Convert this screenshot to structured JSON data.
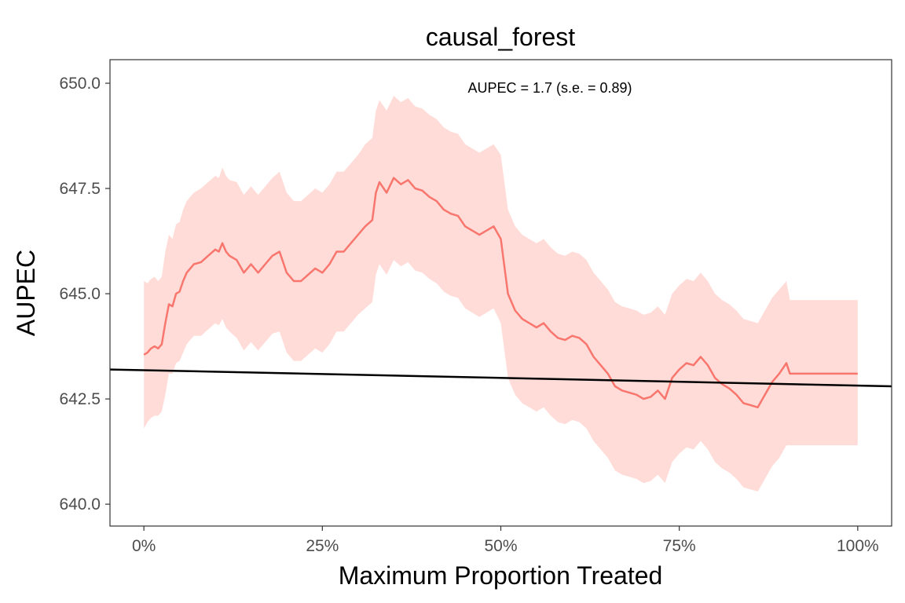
{
  "chart_data": {
    "type": "line",
    "title": "causal_forest",
    "xlabel": "Maximum Proportion Treated",
    "ylabel": "AUPEC",
    "annotation": "AUPEC = 1.7 (s.e. = 0.89)",
    "xlim": [
      -0.0475,
      1.0475
    ],
    "ylim": [
      639.48,
      650.56
    ],
    "x_ticks": [
      0,
      0.25,
      0.5,
      0.75,
      1.0
    ],
    "x_tick_labels": [
      "0%",
      "25%",
      "50%",
      "75%",
      "100%"
    ],
    "y_ticks": [
      640.0,
      642.5,
      645.0,
      647.5,
      650.0
    ],
    "y_tick_labels": [
      "640.0",
      "642.5",
      "645.0",
      "647.5",
      "650.0"
    ],
    "grid": false,
    "colors": {
      "line": "#F8766D",
      "band": "#FFDCD8",
      "reference": "#000000",
      "panel_border": "#333333"
    },
    "series": [
      {
        "x": [
          0,
          0.005,
          0.01,
          0.015,
          0.02,
          0.025,
          0.03,
          0.035,
          0.04,
          0.045,
          0.05,
          0.055,
          0.06,
          0.065,
          0.07,
          0.08,
          0.09,
          0.1,
          0.105,
          0.11,
          0.115,
          0.12,
          0.13,
          0.14,
          0.15,
          0.16,
          0.17,
          0.18,
          0.19,
          0.2,
          0.21,
          0.22,
          0.23,
          0.24,
          0.25,
          0.26,
          0.27,
          0.28,
          0.29,
          0.3,
          0.31,
          0.32,
          0.325,
          0.33,
          0.34,
          0.35,
          0.36,
          0.37,
          0.38,
          0.39,
          0.4,
          0.41,
          0.42,
          0.43,
          0.44,
          0.45,
          0.46,
          0.47,
          0.48,
          0.49,
          0.5,
          0.51,
          0.52,
          0.53,
          0.54,
          0.55,
          0.56,
          0.57,
          0.58,
          0.59,
          0.6,
          0.61,
          0.62,
          0.63,
          0.64,
          0.65,
          0.66,
          0.67,
          0.68,
          0.69,
          0.7,
          0.71,
          0.72,
          0.73,
          0.74,
          0.75,
          0.76,
          0.77,
          0.78,
          0.79,
          0.8,
          0.81,
          0.82,
          0.83,
          0.84,
          0.85,
          0.86,
          0.87,
          0.88,
          0.89,
          0.9,
          0.905,
          0.95,
          1.0
        ],
        "y": [
          643.55,
          643.6,
          643.7,
          643.75,
          643.7,
          643.8,
          644.3,
          644.75,
          644.7,
          645.0,
          645.05,
          645.3,
          645.5,
          645.6,
          645.7,
          645.75,
          645.9,
          646.05,
          646.0,
          646.2,
          646.0,
          645.9,
          645.8,
          645.5,
          645.7,
          645.5,
          645.7,
          645.9,
          646.0,
          645.5,
          645.3,
          645.3,
          645.45,
          645.6,
          645.5,
          645.7,
          646.0,
          646.0,
          646.2,
          646.4,
          646.6,
          646.75,
          647.4,
          647.65,
          647.4,
          647.75,
          647.6,
          647.7,
          647.5,
          647.45,
          647.3,
          647.2,
          647.0,
          646.9,
          646.85,
          646.6,
          646.5,
          646.4,
          646.5,
          646.6,
          646.3,
          645.0,
          644.6,
          644.4,
          644.3,
          644.2,
          644.3,
          644.1,
          643.95,
          643.9,
          644.0,
          643.95,
          643.8,
          643.5,
          643.3,
          643.1,
          642.8,
          642.7,
          642.65,
          642.6,
          642.5,
          642.55,
          642.7,
          642.5,
          643.0,
          643.2,
          643.35,
          643.3,
          643.5,
          643.3,
          643.0,
          642.85,
          642.75,
          642.6,
          642.4,
          642.35,
          642.3,
          642.6,
          642.9,
          643.1,
          643.35,
          643.1,
          643.1,
          643.1
        ],
        "lower": [
          641.8,
          641.95,
          642.05,
          642.1,
          642.1,
          642.2,
          642.6,
          643.1,
          643.1,
          643.35,
          643.4,
          643.6,
          643.8,
          643.9,
          644.0,
          644.0,
          644.15,
          644.3,
          644.25,
          644.4,
          644.2,
          644.1,
          643.95,
          643.65,
          643.85,
          643.65,
          643.85,
          644.05,
          644.1,
          643.6,
          643.4,
          643.4,
          643.55,
          643.7,
          643.6,
          643.8,
          644.1,
          644.1,
          644.3,
          644.5,
          644.65,
          644.8,
          645.45,
          645.7,
          645.45,
          645.8,
          645.65,
          645.75,
          645.55,
          645.5,
          645.35,
          645.25,
          645.05,
          644.95,
          644.9,
          644.65,
          644.55,
          644.45,
          644.55,
          644.65,
          644.3,
          643.0,
          642.6,
          642.4,
          642.3,
          642.2,
          642.3,
          642.1,
          641.95,
          641.9,
          642.0,
          641.95,
          641.8,
          641.5,
          641.3,
          641.1,
          640.8,
          640.7,
          640.65,
          640.6,
          640.5,
          640.55,
          640.7,
          640.5,
          641.0,
          641.2,
          641.35,
          641.3,
          641.5,
          641.3,
          641.0,
          640.85,
          640.75,
          640.6,
          640.4,
          640.35,
          640.3,
          640.6,
          640.9,
          641.1,
          641.4,
          641.4,
          641.4,
          641.4
        ],
        "upper": [
          645.3,
          645.25,
          645.35,
          645.4,
          645.3,
          645.4,
          646.0,
          646.4,
          646.3,
          646.65,
          646.7,
          647.0,
          647.2,
          647.3,
          647.4,
          647.5,
          647.65,
          647.8,
          647.75,
          648.0,
          647.8,
          647.7,
          647.65,
          647.35,
          647.55,
          647.35,
          647.55,
          647.75,
          647.9,
          647.4,
          647.2,
          647.2,
          647.35,
          647.5,
          647.4,
          647.6,
          647.9,
          647.9,
          648.1,
          648.3,
          648.55,
          648.7,
          649.35,
          649.6,
          649.35,
          649.7,
          649.55,
          649.65,
          649.45,
          649.4,
          649.25,
          649.15,
          648.95,
          648.85,
          648.8,
          648.55,
          648.45,
          648.35,
          648.45,
          648.55,
          648.3,
          647.0,
          646.6,
          646.4,
          646.3,
          646.2,
          646.3,
          646.1,
          645.95,
          645.9,
          646.0,
          645.95,
          645.8,
          645.5,
          645.3,
          645.1,
          644.8,
          644.7,
          644.65,
          644.6,
          644.5,
          644.55,
          644.7,
          644.5,
          645.0,
          645.2,
          645.35,
          645.3,
          645.5,
          645.3,
          645.0,
          644.85,
          644.75,
          644.6,
          644.4,
          644.35,
          644.3,
          644.6,
          644.9,
          645.1,
          645.3,
          644.85,
          644.85,
          644.85
        ]
      },
      {
        "x": [
          -0.0475,
          1.0475
        ],
        "y": [
          643.2,
          642.8
        ]
      }
    ]
  }
}
